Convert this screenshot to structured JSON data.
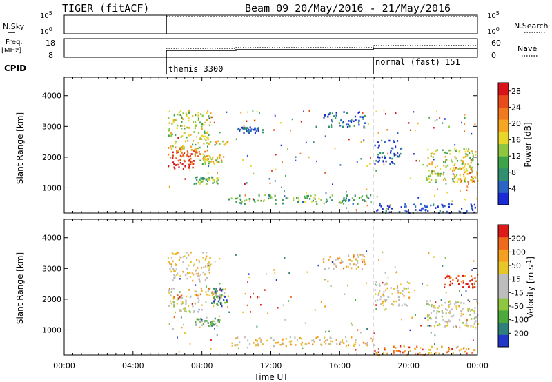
{
  "header": {
    "radar_title": "TIGER (fitACF)",
    "beam_title": "Beam 09 20/May/2016 - 21/May/2016"
  },
  "noise_panel": {
    "left_label": "N.Sky",
    "right_label": "N.Search",
    "ticks_left": [
      "10^5",
      "10^0"
    ],
    "ticks_right": [
      "10^5",
      "10^0"
    ]
  },
  "freq_panel": {
    "left_label_line1": "Freq.",
    "left_label_line2": "[MHz]",
    "ticks_left": [
      "18",
      "8"
    ],
    "ticks_right": [
      "60",
      "0"
    ],
    "right_label": "Nave"
  },
  "cpid": {
    "label": "CPID",
    "segments": [
      {
        "name": "themis 3300",
        "start_hour": 6
      },
      {
        "name": "normal (fast) 151",
        "start_hour": 18
      }
    ]
  },
  "chart_data": [
    {
      "type": "heatmap",
      "name": "Power",
      "ylabel": "Slant Range [km]",
      "xlabel": "Time UT",
      "x_ticks": [
        "00:00",
        "04:00",
        "08:00",
        "12:00",
        "16:00",
        "20:00",
        "00:00"
      ],
      "xlim_hours": [
        0,
        24
      ],
      "y_ticks": [
        1000,
        2000,
        3000,
        4000
      ],
      "ylim_km": [
        180,
        4600
      ],
      "colorbar": {
        "label": "Power [dB]",
        "ticks": [
          "4",
          "8",
          "12",
          "16",
          "20",
          "24",
          "28"
        ],
        "range": [
          0,
          30
        ],
        "colors": [
          "#1a2bd6",
          "#2a64c4",
          "#2f8f6e",
          "#3fa34a",
          "#8ec63f",
          "#e8d62a",
          "#f5a623",
          "#f07a1f",
          "#e84b1a",
          "#d8141a"
        ]
      },
      "regions": [
        {
          "h0": 6.0,
          "h1": 7.5,
          "r0": 1600,
          "r1": 2050,
          "level": 0.92
        },
        {
          "h0": 6.0,
          "h1": 8.3,
          "r0": 2050,
          "r1": 2300,
          "level": 0.75
        },
        {
          "h0": 6.0,
          "h1": 9.5,
          "r0": 2300,
          "r1": 2600,
          "level": 0.55
        },
        {
          "h0": 6.0,
          "h1": 8.5,
          "r0": 2600,
          "r1": 3550,
          "level": 0.5
        },
        {
          "h0": 7.5,
          "h1": 9.0,
          "r0": 1150,
          "r1": 1400,
          "level": 0.4
        },
        {
          "h0": 8.0,
          "h1": 9.3,
          "r0": 1800,
          "r1": 2100,
          "level": 0.55
        },
        {
          "h0": 9.5,
          "h1": 18.0,
          "r0": 500,
          "r1": 800,
          "level": 0.35
        },
        {
          "h0": 15.0,
          "h1": 17.5,
          "r0": 3000,
          "r1": 3500,
          "level": 0.15
        },
        {
          "h0": 10.0,
          "h1": 11.5,
          "r0": 2800,
          "r1": 3000,
          "level": 0.12
        },
        {
          "h0": 18.0,
          "h1": 19.5,
          "r0": 1800,
          "r1": 2600,
          "level": 0.12
        },
        {
          "h0": 18.0,
          "h1": 24.0,
          "r0": 200,
          "r1": 500,
          "level": 0.08
        },
        {
          "h0": 21.0,
          "h1": 24.0,
          "r0": 1200,
          "r1": 2300,
          "level": 0.5
        },
        {
          "h0": 22.5,
          "h1": 24.0,
          "r0": 1200,
          "r1": 1700,
          "level": 0.65
        }
      ]
    },
    {
      "type": "heatmap",
      "name": "Velocity",
      "ylabel": "Slant Range [km]",
      "xlabel": "Time UT",
      "x_ticks": [
        "00:00",
        "04:00",
        "08:00",
        "12:00",
        "16:00",
        "20:00",
        "00:00"
      ],
      "xlim_hours": [
        0,
        24
      ],
      "y_ticks": [
        1000,
        2000,
        3000,
        4000
      ],
      "ylim_km": [
        180,
        4600
      ],
      "colorbar": {
        "label": "Velocity [m s^-1]",
        "ticks": [
          "200",
          "100",
          "50",
          "15",
          "-15",
          "-50",
          "-100",
          "-200"
        ],
        "range": [
          -250,
          250
        ],
        "colors": [
          "#2438c8",
          "#2f7f7a",
          "#4caa3c",
          "#8ec63f",
          "#bdbdbd",
          "#bdbdbd",
          "#e8c62a",
          "#f5a020",
          "#ef6a1c",
          "#dc1a1a"
        ]
      },
      "regions": [
        {
          "h0": 6.0,
          "h1": 8.0,
          "r0": 1600,
          "r1": 2100,
          "level": 0.5
        },
        {
          "h0": 6.0,
          "h1": 9.5,
          "r0": 2050,
          "r1": 2400,
          "level": 0.7
        },
        {
          "h0": 8.5,
          "h1": 9.5,
          "r0": 1800,
          "r1": 2400,
          "level": 0.15
        },
        {
          "h0": 6.0,
          "h1": 8.5,
          "r0": 2600,
          "r1": 3550,
          "level": 0.6
        },
        {
          "h0": 7.5,
          "h1": 9.0,
          "r0": 1150,
          "r1": 1400,
          "level": 0.3
        },
        {
          "h0": 9.5,
          "h1": 18.0,
          "r0": 500,
          "r1": 800,
          "level": 0.65
        },
        {
          "h0": 15.0,
          "h1": 17.5,
          "r0": 3000,
          "r1": 3500,
          "level": 0.65
        },
        {
          "h0": 18.0,
          "h1": 20.0,
          "r0": 1800,
          "r1": 2600,
          "level": 0.55
        },
        {
          "h0": 18.0,
          "h1": 24.0,
          "r0": 200,
          "r1": 500,
          "level": 0.8
        },
        {
          "h0": 21.0,
          "h1": 24.0,
          "r0": 1100,
          "r1": 2000,
          "level": 0.5
        },
        {
          "h0": 22.0,
          "h1": 24.0,
          "r0": 2400,
          "r1": 2800,
          "level": 0.9
        }
      ]
    }
  ]
}
